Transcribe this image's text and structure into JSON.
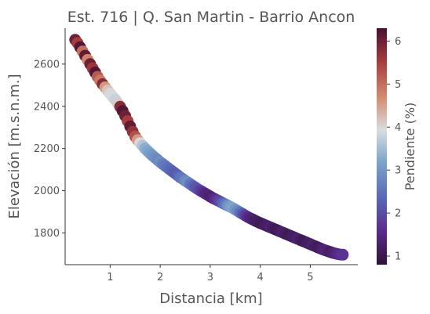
{
  "chart_data": {
    "type": "scatter",
    "title": "Est. 716 | Q. San Martin - Barrio Ancon",
    "xlabel": "Distancia [km]",
    "ylabel": "Elevación [m.s.n.m.]",
    "xlim": [
      0.1,
      5.95
    ],
    "ylim": [
      1650,
      2770
    ],
    "xticks": [
      1,
      2,
      3,
      4,
      5
    ],
    "yticks": [
      1800,
      2000,
      2200,
      2400,
      2600
    ],
    "grid": false,
    "colorbar": {
      "label": "Pendiente (%)",
      "range": [
        0.8,
        6.3
      ],
      "ticks": [
        1,
        2,
        3,
        4,
        5,
        6
      ],
      "colormap": "twilight_shifted",
      "colors": [
        "#2f1436",
        "#5a2a8c",
        "#5867b7",
        "#7aa3c9",
        "#d9dde0",
        "#d38a6d",
        "#a43c3f",
        "#4a1031"
      ]
    },
    "points": {
      "x": [
        0.3,
        0.35,
        0.4,
        0.45,
        0.5,
        0.55,
        0.6,
        0.65,
        0.7,
        0.75,
        0.8,
        0.85,
        0.9,
        0.95,
        1.0,
        1.05,
        1.1,
        1.15,
        1.2,
        1.25,
        1.3,
        1.35,
        1.4,
        1.45,
        1.5,
        1.55,
        1.6,
        1.65,
        1.7,
        1.75,
        1.8,
        1.85,
        1.9,
        1.95,
        2.0,
        2.05,
        2.1,
        2.15,
        2.2,
        2.25,
        2.3,
        2.35,
        2.4,
        2.45,
        2.5,
        2.55,
        2.6,
        2.65,
        2.7,
        2.75,
        2.8,
        2.85,
        2.9,
        2.95,
        3.0,
        3.05,
        3.1,
        3.15,
        3.2,
        3.25,
        3.3,
        3.35,
        3.4,
        3.45,
        3.5,
        3.55,
        3.6,
        3.65,
        3.7,
        3.75,
        3.8,
        3.85,
        3.9,
        3.95,
        4.0,
        4.05,
        4.1,
        4.15,
        4.2,
        4.25,
        4.3,
        4.35,
        4.4,
        4.45,
        4.5,
        4.55,
        4.6,
        4.65,
        4.7,
        4.75,
        4.8,
        4.85,
        4.9,
        4.95,
        5.0,
        5.05,
        5.1,
        5.15,
        5.2,
        5.25,
        5.3,
        5.35,
        5.4,
        5.45,
        5.5,
        5.55,
        5.6,
        5.65
      ],
      "y": [
        2715,
        2700,
        2680,
        2660,
        2640,
        2620,
        2600,
        2580,
        2560,
        2540,
        2522,
        2505,
        2490,
        2475,
        2460,
        2446,
        2432,
        2416,
        2398,
        2378,
        2355,
        2330,
        2305,
        2280,
        2257,
        2240,
        2226,
        2213,
        2200,
        2188,
        2177,
        2166,
        2156,
        2146,
        2136,
        2127,
        2118,
        2109,
        2100,
        2091,
        2082,
        2073,
        2064,
        2056,
        2048,
        2040,
        2032,
        2024,
        2016,
        2008,
        2001,
        1994,
        1987,
        1980,
        1973,
        1966,
        1960,
        1954,
        1948,
        1942,
        1936,
        1930,
        1924,
        1918,
        1911,
        1904,
        1897,
        1890,
        1883,
        1876,
        1870,
        1864,
        1858,
        1852,
        1847,
        1842,
        1837,
        1832,
        1827,
        1822,
        1817,
        1812,
        1807,
        1802,
        1797,
        1792,
        1787,
        1782,
        1777,
        1772,
        1767,
        1762,
        1757,
        1752,
        1747,
        1742,
        1737,
        1732,
        1727,
        1722,
        1718,
        1714,
        1710,
        1706,
        1703,
        1700,
        1698,
        1697
      ],
      "slope": [
        6.0,
        5.5,
        6.2,
        5.0,
        6.1,
        4.8,
        6.0,
        5.6,
        6.2,
        5.2,
        4.9,
        5.8,
        4.6,
        4.2,
        4.0,
        3.9,
        3.8,
        4.1,
        5.8,
        6.2,
        6.0,
        5.5,
        6.1,
        5.7,
        5.3,
        4.6,
        4.0,
        3.6,
        3.3,
        3.2,
        3.1,
        3.0,
        2.9,
        2.8,
        2.9,
        2.7,
        2.6,
        2.5,
        2.4,
        2.3,
        2.2,
        2.3,
        2.5,
        2.6,
        2.8,
        2.9,
        2.6,
        2.4,
        2.2,
        2.1,
        1.9,
        1.7,
        1.5,
        1.4,
        1.3,
        1.4,
        1.6,
        1.8,
        2.0,
        2.3,
        2.6,
        2.9,
        3.1,
        3.2,
        3.0,
        2.8,
        2.5,
        2.2,
        1.9,
        1.6,
        1.4,
        1.3,
        1.2,
        1.2,
        1.1,
        1.1,
        1.2,
        1.2,
        1.3,
        1.2,
        1.1,
        1.1,
        1.2,
        1.3,
        1.2,
        1.1,
        1.1,
        1.2,
        1.2,
        1.3,
        1.2,
        1.1,
        1.1,
        1.2,
        1.2,
        1.3,
        1.2,
        1.1,
        1.2,
        1.3,
        1.4,
        1.3,
        1.2,
        1.3,
        1.4,
        1.5,
        1.6,
        1.7
      ]
    }
  }
}
